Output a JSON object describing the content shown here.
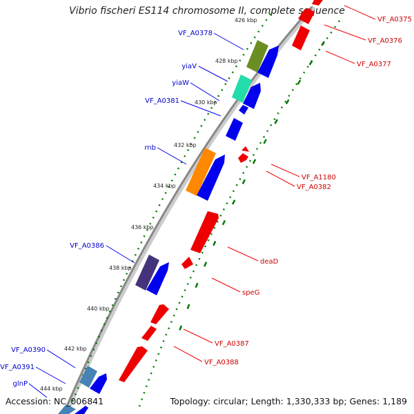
{
  "title": "Vibrio fischeri ES114 chromosome II, complete sequence",
  "footer": {
    "accession": "Accession: NC_006841",
    "summary": "Topology: circular; Length: 1,330,333 bp; Genes: 1,189"
  },
  "colors": {
    "forward": "#0000ee",
    "reverse": "#ee0000",
    "ticks": "#007700",
    "backbone": "#888888"
  },
  "ticks": [
    "426 kbp",
    "428 kbp",
    "430 kbp",
    "432 kbp",
    "434 kbp",
    "436 kbp",
    "438 kbp",
    "440 kbp",
    "442 kbp",
    "444 kbp"
  ],
  "genes_forward": [
    {
      "label": "VF_A0378",
      "color": "#6b8e23"
    },
    {
      "label": "yiaV",
      "color": "#22ddaa"
    },
    {
      "label": "yiaW",
      "color": "#0000ee"
    },
    {
      "label": "VF_A0381",
      "color": "#0000ee"
    },
    {
      "label": "rnb",
      "color": "#ff8800"
    },
    {
      "label": "VF_A0386",
      "color": "#44337a"
    },
    {
      "label": "VF_A0390",
      "color": "#4682b4"
    },
    {
      "label": "VF_A0391",
      "color": "#0000ee"
    },
    {
      "label": "glnP",
      "color": "#4682b4"
    }
  ],
  "genes_reverse": [
    {
      "label": "VF_A0375"
    },
    {
      "label": "VF_A0376"
    },
    {
      "label": "VF_A0377"
    },
    {
      "label": "VF_A1180"
    },
    {
      "label": "VF_A0382"
    },
    {
      "label": "deaD"
    },
    {
      "label": "speG"
    },
    {
      "label": "VF_A0387"
    },
    {
      "label": "VF_A0388"
    }
  ]
}
